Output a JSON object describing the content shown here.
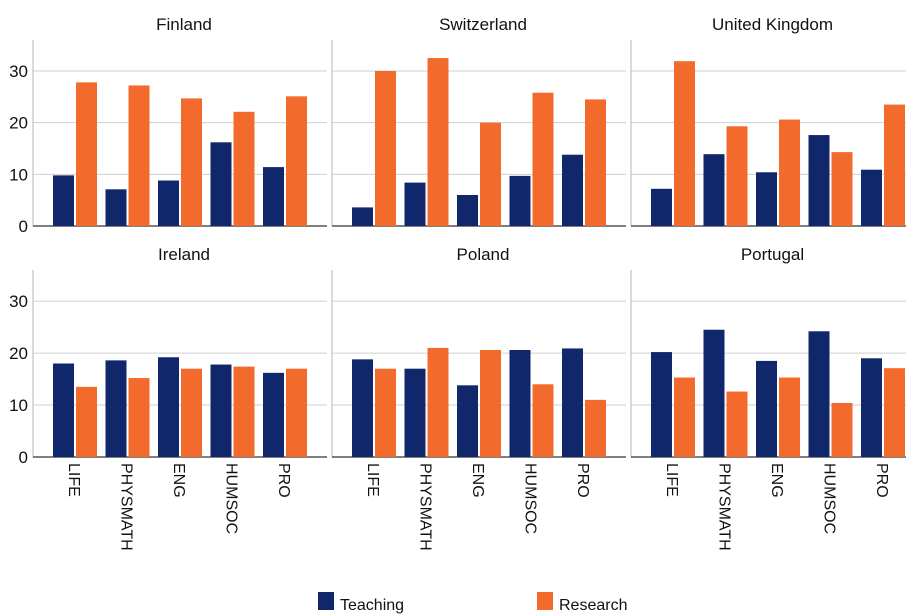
{
  "chart_data": {
    "type": "bar",
    "categories": [
      "LIFE",
      "PHYSMATH",
      "ENG",
      "HUMSOC",
      "PRO"
    ],
    "ylim": [
      0,
      36
    ],
    "yticks": [
      0,
      10,
      20,
      30
    ],
    "grid": true,
    "legend_position": "bottom",
    "series_names": [
      "Teaching",
      "Research"
    ],
    "colors": {
      "teaching": "#10276b",
      "research": "#f36b2c"
    },
    "panels": [
      {
        "title": "Finland",
        "teaching": [
          9.8,
          7.1,
          8.8,
          16.2,
          11.4
        ],
        "research": [
          27.8,
          27.2,
          24.7,
          22.1,
          25.1
        ]
      },
      {
        "title": "Switzerland",
        "teaching": [
          3.6,
          8.4,
          6.0,
          9.7,
          13.8
        ],
        "research": [
          30.0,
          32.5,
          20.0,
          25.8,
          24.5
        ]
      },
      {
        "title": "United Kingdom",
        "teaching": [
          7.2,
          13.9,
          10.4,
          17.6,
          10.9
        ],
        "research": [
          31.9,
          19.3,
          20.6,
          14.3,
          23.5
        ]
      },
      {
        "title": "Ireland",
        "teaching": [
          18.0,
          18.6,
          19.2,
          17.8,
          16.2
        ],
        "research": [
          13.5,
          15.2,
          17.0,
          17.4,
          17.0
        ]
      },
      {
        "title": "Poland",
        "teaching": [
          18.8,
          17.0,
          13.8,
          20.6,
          20.9
        ],
        "research": [
          17.0,
          21.0,
          20.6,
          14.0,
          11.0
        ]
      },
      {
        "title": "Portugal",
        "teaching": [
          20.2,
          24.5,
          18.5,
          24.2,
          19.0
        ],
        "research": [
          15.3,
          12.6,
          15.3,
          10.4,
          17.1
        ]
      }
    ]
  }
}
